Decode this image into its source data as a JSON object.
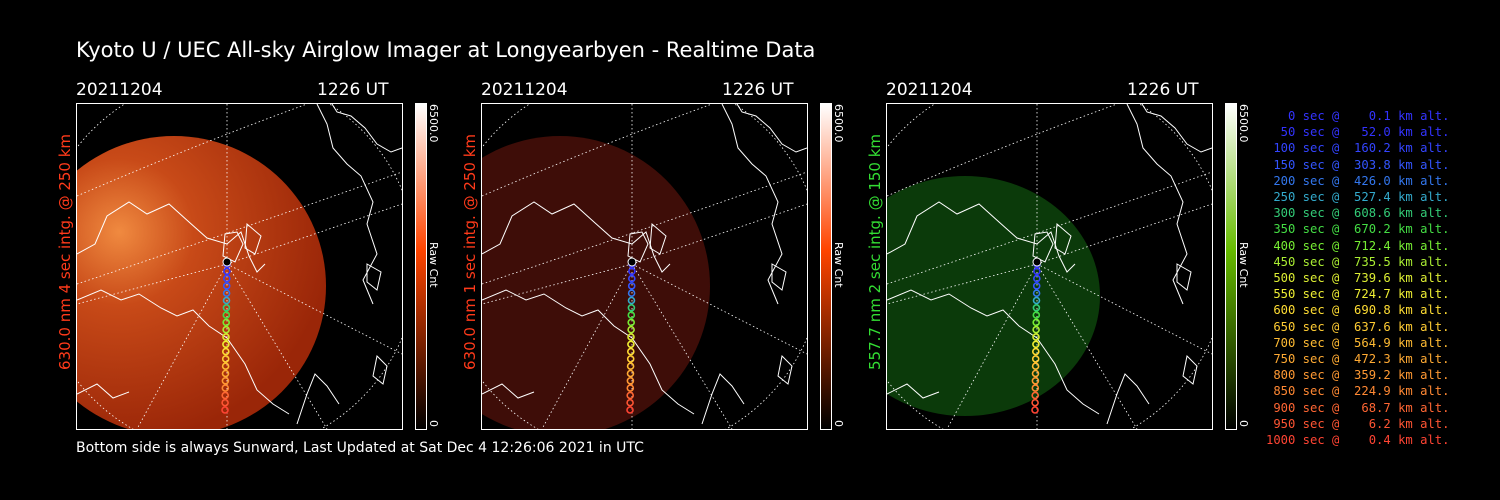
{
  "title": "Kyoto U / UEC All-sky Airglow Imager at Longyearbyen - Realtime Data",
  "footer": "Bottom side is always Sunward, Last Updated at Sat Dec  4 12:26:06 2021 in UTC",
  "panels": [
    {
      "date": "20211204",
      "time": "1226 UT",
      "label": "630.0 nm 4 sec intg. @ 250 km",
      "label_color": "#ff3a1a",
      "colorbar_max": "6500.0",
      "colorbar_min": "0",
      "colorbar_unit": "Raw Cnt",
      "colorbar_color": "#ff4400"
    },
    {
      "date": "20211204",
      "time": "1226 UT",
      "label": "630.0 nm 1 sec intg. @ 250 km",
      "label_color": "#ff3a1a",
      "colorbar_max": "6500.0",
      "colorbar_min": "0",
      "colorbar_unit": "Raw Cnt",
      "colorbar_color": "#ff4400"
    },
    {
      "date": "20211204",
      "time": "1226 UT",
      "label": "557.7 nm 2 sec intg. @ 150 km",
      "label_color": "#33dd33",
      "colorbar_max": "6500.0",
      "colorbar_min": "0",
      "colorbar_unit": "Raw Cnt",
      "colorbar_color": "#66bb00"
    }
  ],
  "legend": [
    {
      "text": "   0 sec @    0.1 km alt.",
      "color": "#3333ff"
    },
    {
      "text": "  50 sec @   52.0 km alt.",
      "color": "#3333ff"
    },
    {
      "text": " 100 sec @  160.2 km alt.",
      "color": "#3344ff"
    },
    {
      "text": " 150 sec @  303.8 km alt.",
      "color": "#3355ff"
    },
    {
      "text": " 200 sec @  426.0 km alt.",
      "color": "#3377ee"
    },
    {
      "text": " 250 sec @  527.4 km alt.",
      "color": "#33aacc"
    },
    {
      "text": " 300 sec @  608.6 km alt.",
      "color": "#33cc77"
    },
    {
      "text": " 350 sec @  670.2 km alt.",
      "color": "#44dd44"
    },
    {
      "text": " 400 sec @  712.4 km alt.",
      "color": "#77ee33"
    },
    {
      "text": " 450 sec @  735.5 km alt.",
      "color": "#aaee33"
    },
    {
      "text": " 500 sec @  739.6 km alt.",
      "color": "#ddee33"
    },
    {
      "text": " 550 sec @  724.7 km alt.",
      "color": "#eeee33"
    },
    {
      "text": " 600 sec @  690.8 km alt.",
      "color": "#ffdd33"
    },
    {
      "text": " 650 sec @  637.6 km alt.",
      "color": "#ffcc33"
    },
    {
      "text": " 700 sec @  564.9 km alt.",
      "color": "#ffbb33"
    },
    {
      "text": " 750 sec @  472.3 km alt.",
      "color": "#ffaa33"
    },
    {
      "text": " 800 sec @  359.2 km alt.",
      "color": "#ff9933"
    },
    {
      "text": " 850 sec @  224.9 km alt.",
      "color": "#ff8833"
    },
    {
      "text": " 900 sec @   68.7 km alt.",
      "color": "#ff6633"
    },
    {
      "text": " 950 sec @    6.2 km alt.",
      "color": "#ff5533"
    },
    {
      "text": "1000 sec @    0.4 km alt.",
      "color": "#ff4433"
    }
  ]
}
